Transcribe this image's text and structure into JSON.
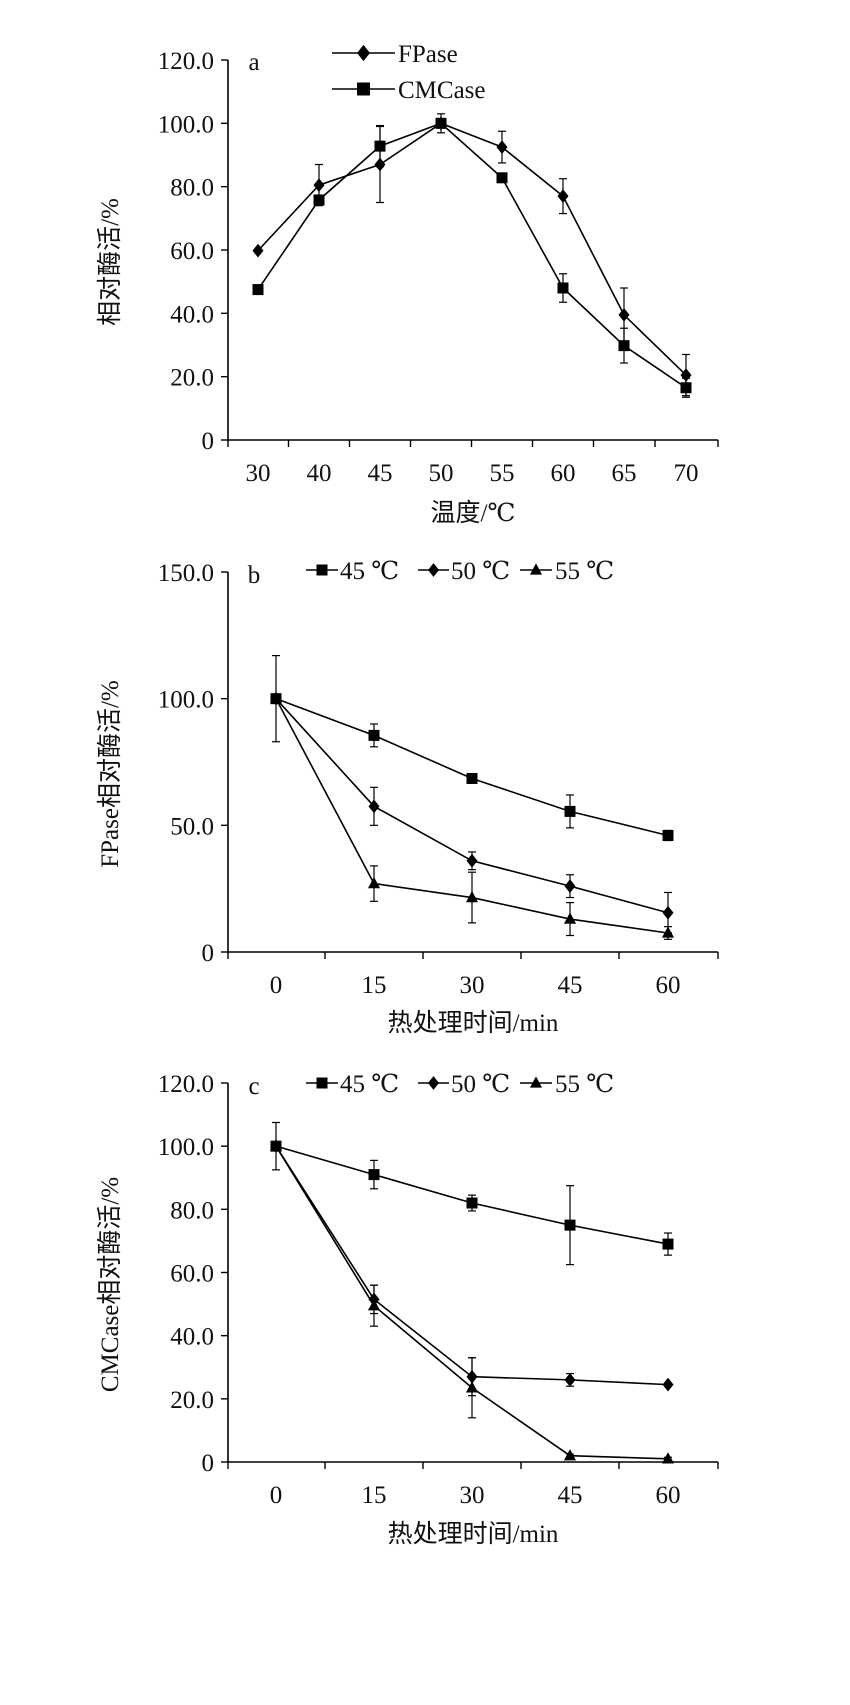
{
  "chart_data": [
    {
      "panel": "a",
      "type": "line",
      "x": [
        "30",
        "40",
        "45",
        "50",
        "55",
        "60",
        "65",
        "70"
      ],
      "xlabel": "温度/℃",
      "ylabel": "相对酶活/%",
      "ylim": [
        0,
        120
      ],
      "yticks": [
        "0",
        "20.0",
        "40.0",
        "60.0",
        "80.0",
        "100.0",
        "120.0"
      ],
      "legend_position": "top-center",
      "grid": false,
      "series": [
        {
          "name": "FPase",
          "marker": "diamond",
          "values": [
            59.8,
            80.5,
            87.0,
            100.0,
            92.5,
            77.0,
            39.5,
            20.5
          ],
          "errors": [
            0,
            6.5,
            12.0,
            1.5,
            5.0,
            5.5,
            8.5,
            6.5
          ]
        },
        {
          "name": "CMCase",
          "marker": "square",
          "values": [
            47.5,
            75.8,
            92.8,
            100.0,
            82.8,
            48.0,
            29.8,
            16.5
          ],
          "errors": [
            0,
            1.5,
            6.5,
            3.0,
            1.0,
            4.5,
            5.5,
            3.0
          ]
        }
      ]
    },
    {
      "panel": "b",
      "type": "line",
      "x": [
        "0",
        "15",
        "30",
        "45",
        "60"
      ],
      "xlabel": "热处理时间/min",
      "ylabel": "FPase相对酶活/%",
      "ylim": [
        0,
        150
      ],
      "yticks": [
        "0",
        "50.0",
        "100.0",
        "150.0"
      ],
      "legend_position": "top",
      "grid": false,
      "series": [
        {
          "name": "45 ℃",
          "marker": "square",
          "values": [
            100.0,
            85.5,
            68.5,
            55.5,
            46.0
          ],
          "errors": [
            17.0,
            4.5,
            1.5,
            6.5,
            2.0
          ]
        },
        {
          "name": "50 ℃",
          "marker": "diamond",
          "values": [
            100.0,
            57.5,
            36.0,
            26.0,
            15.5
          ],
          "errors": [
            0,
            7.5,
            3.5,
            4.5,
            8.0
          ]
        },
        {
          "name": "55 ℃",
          "marker": "triangle",
          "values": [
            100.0,
            27.0,
            21.5,
            13.0,
            7.5
          ],
          "errors": [
            0,
            7.0,
            10.0,
            6.5,
            2.5
          ]
        }
      ]
    },
    {
      "panel": "c",
      "type": "line",
      "x": [
        "0",
        "15",
        "30",
        "45",
        "60"
      ],
      "xlabel": "热处理时间/min",
      "ylabel": "CMCase相对酶活/%",
      "ylim": [
        0,
        120
      ],
      "yticks": [
        "0",
        "20.0",
        "40.0",
        "60.0",
        "80.0",
        "100.0",
        "120.0"
      ],
      "legend_position": "top",
      "grid": false,
      "series": [
        {
          "name": "45 ℃",
          "marker": "square",
          "values": [
            100.0,
            91.0,
            82.0,
            75.0,
            69.0
          ],
          "errors": [
            7.5,
            4.5,
            2.5,
            12.5,
            3.5
          ]
        },
        {
          "name": "50 ℃",
          "marker": "diamond",
          "values": [
            100.0,
            51.5,
            27.0,
            26.0,
            24.5
          ],
          "errors": [
            0,
            4.5,
            6.0,
            2.0,
            0.5
          ]
        },
        {
          "name": "55 ℃",
          "marker": "triangle",
          "values": [
            100.0,
            49.5,
            23.5,
            2.0,
            1.0
          ],
          "errors": [
            0,
            6.5,
            9.5,
            0.5,
            0.5
          ]
        }
      ]
    }
  ]
}
